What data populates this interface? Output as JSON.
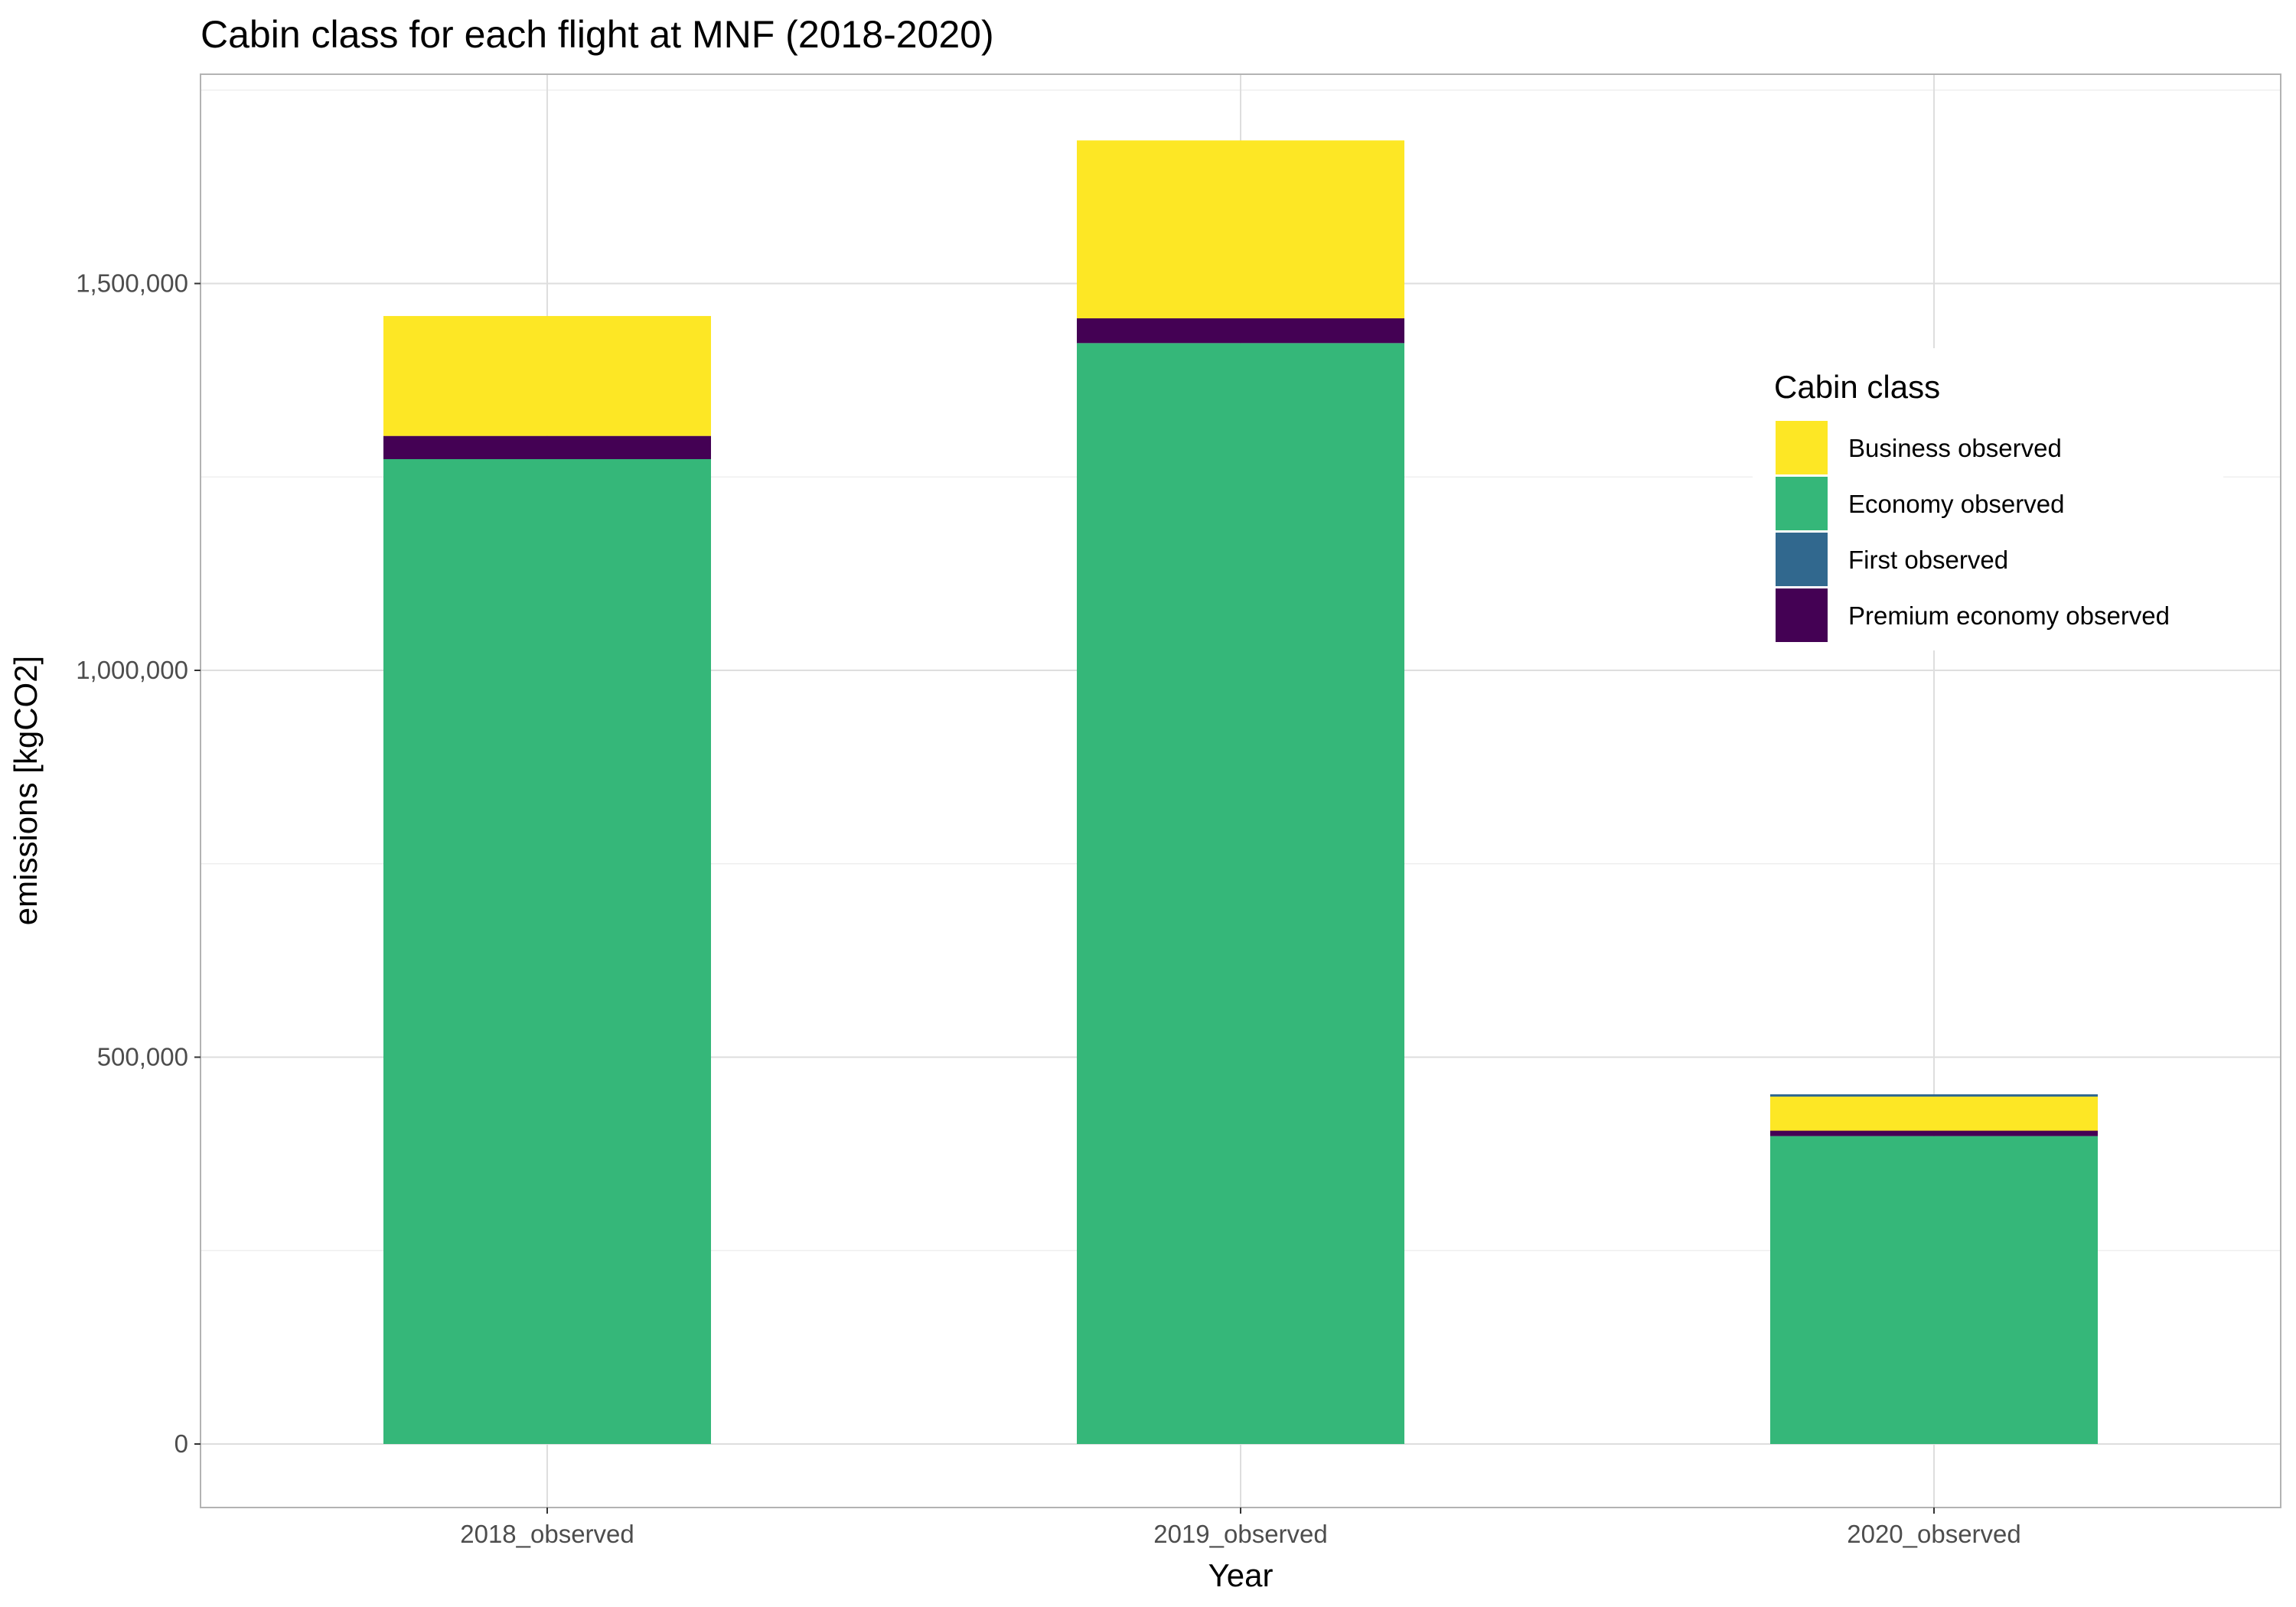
{
  "chart_data": {
    "type": "bar",
    "stacked": true,
    "title": "Cabin class for each flight at MNF (2018-2020)",
    "xlabel": "Year",
    "ylabel": "emissions [kgCO2]",
    "categories": [
      "2018_observed",
      "2019_observed",
      "2020_observed"
    ],
    "ylim": [
      -80000,
      1750000
    ],
    "yticks": [
      0,
      500000,
      1000000,
      1500000
    ],
    "ytick_labels": [
      "0",
      "500,000",
      "1,000,000",
      "1,500,000"
    ],
    "grid": true,
    "legend": {
      "title": "Cabin class",
      "position": "right-inside-top"
    },
    "stack_order": [
      "Economy observed",
      "Premium economy observed",
      "Business observed",
      "First observed"
    ],
    "series": [
      {
        "name": "Business observed",
        "color": "#FDE725",
        "values": [
          155000,
          230000,
          44000
        ]
      },
      {
        "name": "Economy observed",
        "color": "#35B779",
        "values": [
          1273000,
          1423000,
          398000
        ]
      },
      {
        "name": "First observed",
        "color": "#31688E",
        "values": [
          0,
          0,
          3000
        ]
      },
      {
        "name": "Premium economy observed",
        "color": "#440154",
        "values": [
          30000,
          32000,
          7000
        ]
      }
    ]
  }
}
